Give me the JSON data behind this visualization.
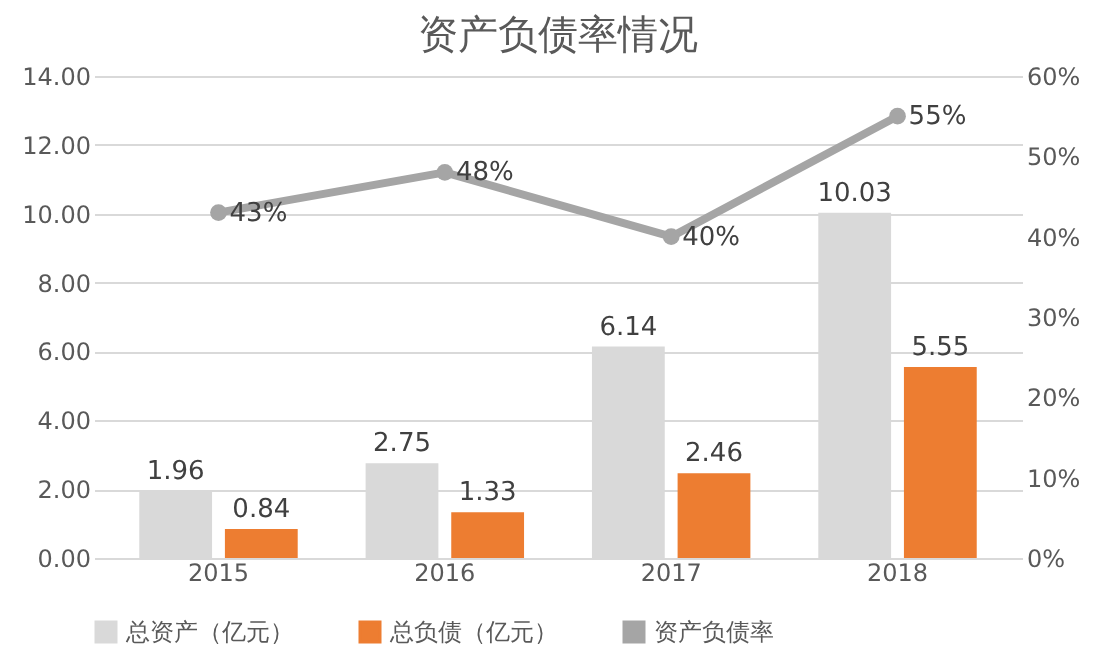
{
  "chart_data": {
    "type": "bar",
    "title": "资产负债率情况",
    "categories": [
      "2015",
      "2016",
      "2017",
      "2018"
    ],
    "series": [
      {
        "name": "总资产（亿元）",
        "color": "#d9d9d9",
        "values": [
          1.96,
          2.75,
          6.14,
          10.03
        ]
      },
      {
        "name": "总负债（亿元）",
        "color": "#ed7d31",
        "values": [
          0.84,
          1.33,
          2.46,
          5.55
        ]
      },
      {
        "name": "资产负债率",
        "type": "line",
        "axis": "y2",
        "color": "#a5a5a5",
        "values": [
          43,
          48,
          40,
          55
        ],
        "value_labels": [
          "43%",
          "48%",
          "40%",
          "55%"
        ]
      }
    ],
    "ylim": [
      0,
      14
    ],
    "yticks": [
      {
        "value": 0,
        "label": "0.00"
      },
      {
        "value": 2,
        "label": "2.00"
      },
      {
        "value": 4,
        "label": "4.00"
      },
      {
        "value": 6,
        "label": "6.00"
      },
      {
        "value": 8,
        "label": "8.00"
      },
      {
        "value": 10,
        "label": "10.00"
      },
      {
        "value": 12,
        "label": "12.00"
      },
      {
        "value": 14,
        "label": "14.00"
      }
    ],
    "y2lim": [
      0,
      60
    ],
    "y2ticks": [
      {
        "value": 0,
        "label": "0%"
      },
      {
        "value": 10,
        "label": "10%"
      },
      {
        "value": 20,
        "label": "20%"
      },
      {
        "value": 30,
        "label": "30%"
      },
      {
        "value": 40,
        "label": "40%"
      },
      {
        "value": 50,
        "label": "50%"
      },
      {
        "value": 60,
        "label": "60%"
      }
    ],
    "grid": "y",
    "legend": "bottom",
    "data_labels": true,
    "marker": "circle"
  }
}
